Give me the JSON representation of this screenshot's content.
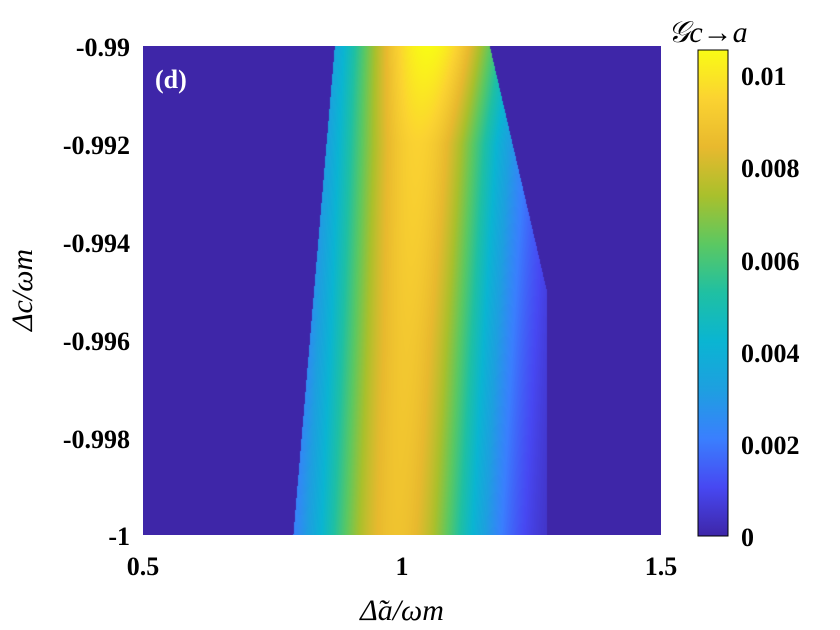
{
  "chart_data": {
    "type": "heatmap",
    "panel_label": "(d)",
    "xlabel": "Δ̃a/ωm",
    "ylabel": "Δc/ωm",
    "colorbar_label": "𝒢c→a",
    "xlim": [
      0.5,
      1.5
    ],
    "ylim": [
      -1,
      -0.99
    ],
    "x_ticks": [
      "0.5",
      "1",
      "1.5"
    ],
    "y_ticks": [
      "-0.99",
      "-0.992",
      "-0.994",
      "-0.996",
      "-0.998",
      "-1"
    ],
    "colorbar": {
      "range": [
        0,
        0.0105
      ],
      "ticks": [
        "0.01",
        "0.008",
        "0.006",
        "0.004",
        "0.002",
        "0"
      ],
      "colormap": "parula"
    },
    "ridge": {
      "description": "peak values along the diagonal ridge",
      "points": [
        {
          "y": -1,
          "x_center": 0.99,
          "peak": 0.0088
        },
        {
          "y": -0.996,
          "x_center": 1.01,
          "peak": 0.009
        },
        {
          "y": -0.992,
          "x_center": 1.03,
          "peak": 0.0094
        },
        {
          "y": -0.99,
          "x_center": 1.05,
          "peak": 0.0105
        }
      ],
      "width_sigma": 0.12
    },
    "left_cutoff": [
      {
        "y": -1,
        "x": 0.79
      },
      {
        "y": -0.99,
        "x": 0.87
      }
    ],
    "right_cutoff": [
      {
        "y": -1,
        "x": 1.28
      },
      {
        "y": -0.995,
        "x": 1.28
      },
      {
        "y": -0.99,
        "x": 1.17
      }
    ],
    "background_value": 0
  }
}
